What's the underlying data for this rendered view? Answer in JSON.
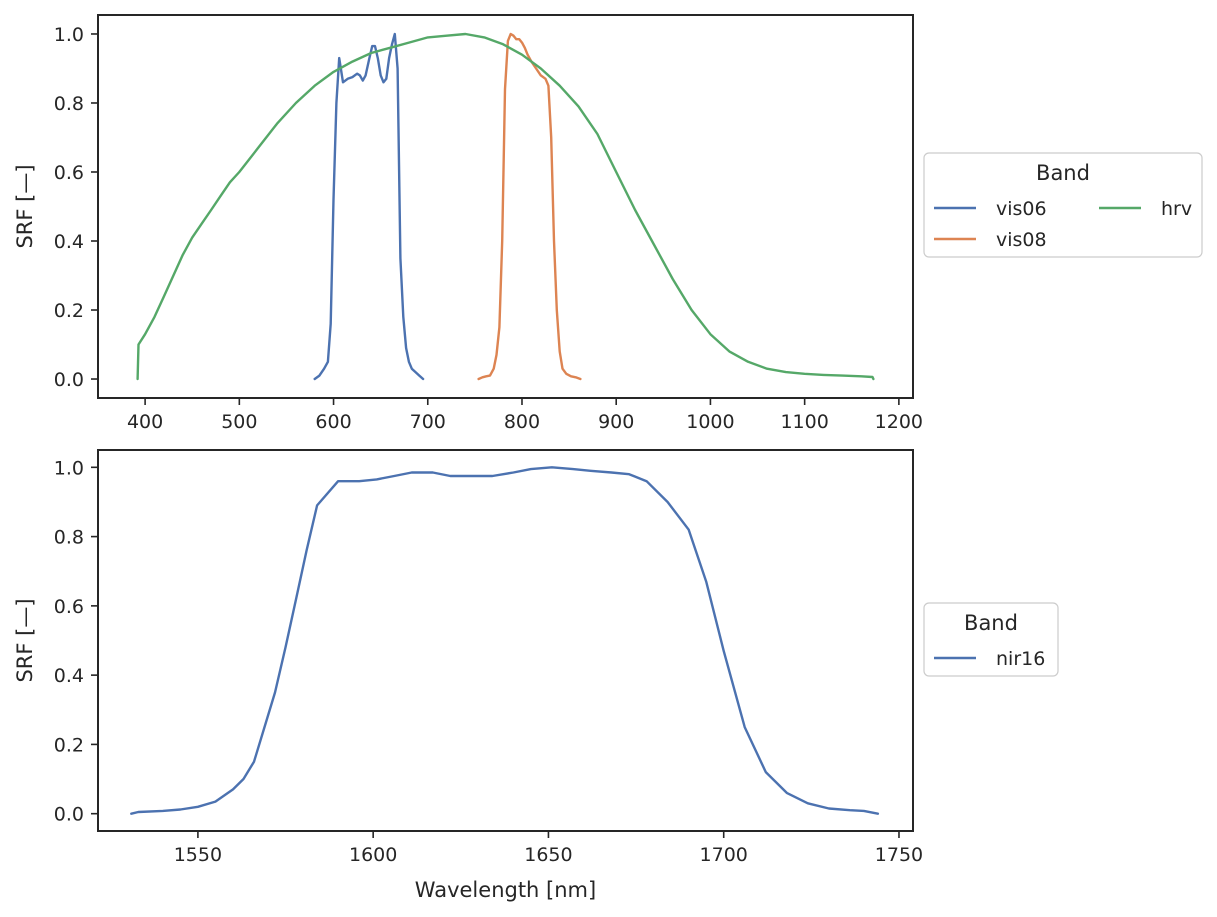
{
  "colors": {
    "blue": "#4c72b0",
    "orange": "#dd8452",
    "green": "#55a868",
    "axis": "#262626"
  },
  "chart_data": [
    {
      "type": "line",
      "title": "",
      "xlabel": "",
      "ylabel": "SRF [—]",
      "xlim": [
        350,
        1215
      ],
      "ylim": [
        -0.055,
        1.055
      ],
      "xticks": [
        400,
        500,
        600,
        700,
        800,
        900,
        1000,
        1100,
        1200
      ],
      "yticks": [
        0.0,
        0.2,
        0.4,
        0.6,
        0.8,
        1.0
      ],
      "ytick_labels": [
        "0.0",
        "0.2",
        "0.4",
        "0.6",
        "0.8",
        "1.0"
      ],
      "grid": false,
      "legend": {
        "title": "Band",
        "placement": "right-outside",
        "columns": 2,
        "entries": [
          "vis06",
          "vis08",
          "hrv"
        ]
      },
      "series": [
        {
          "name": "vis06",
          "color": "#4c72b0",
          "x": [
            580,
            585,
            590,
            594,
            597,
            600,
            603,
            606,
            610,
            615,
            620,
            625,
            628,
            631,
            634,
            638,
            641,
            644,
            647,
            650,
            653,
            656,
            659,
            662,
            665,
            668,
            671,
            674,
            677,
            680,
            683,
            687,
            691,
            695
          ],
          "y": [
            0.0,
            0.01,
            0.03,
            0.05,
            0.16,
            0.52,
            0.8,
            0.93,
            0.86,
            0.87,
            0.875,
            0.885,
            0.88,
            0.865,
            0.88,
            0.93,
            0.965,
            0.965,
            0.93,
            0.88,
            0.86,
            0.87,
            0.93,
            0.97,
            1.0,
            0.9,
            0.35,
            0.18,
            0.09,
            0.05,
            0.03,
            0.02,
            0.01,
            0.0
          ]
        },
        {
          "name": "vis08",
          "color": "#dd8452",
          "x": [
            754,
            758,
            762,
            766,
            770,
            773,
            776,
            779,
            782,
            785,
            788,
            791,
            794,
            797,
            800,
            803,
            806,
            810,
            815,
            820,
            825,
            828,
            831,
            834,
            837,
            840,
            843,
            847,
            852,
            857,
            862
          ],
          "y": [
            0.0,
            0.005,
            0.008,
            0.01,
            0.03,
            0.07,
            0.15,
            0.4,
            0.84,
            0.98,
            1.0,
            0.995,
            0.985,
            0.985,
            0.975,
            0.96,
            0.94,
            0.92,
            0.9,
            0.88,
            0.87,
            0.85,
            0.7,
            0.4,
            0.2,
            0.08,
            0.03,
            0.015,
            0.008,
            0.005,
            0.0
          ]
        },
        {
          "name": "hrv",
          "color": "#55a868",
          "x": [
            392,
            393,
            400,
            410,
            420,
            430,
            440,
            450,
            460,
            470,
            480,
            490,
            500,
            520,
            540,
            560,
            580,
            600,
            620,
            640,
            660,
            680,
            700,
            720,
            740,
            760,
            780,
            800,
            820,
            840,
            860,
            880,
            900,
            920,
            940,
            960,
            980,
            1000,
            1020,
            1040,
            1060,
            1080,
            1100,
            1120,
            1140,
            1160,
            1172,
            1173
          ],
          "y": [
            0.0,
            0.1,
            0.13,
            0.18,
            0.24,
            0.3,
            0.36,
            0.41,
            0.45,
            0.49,
            0.53,
            0.57,
            0.6,
            0.67,
            0.74,
            0.8,
            0.85,
            0.89,
            0.92,
            0.945,
            0.96,
            0.975,
            0.99,
            0.995,
            1.0,
            0.99,
            0.97,
            0.94,
            0.9,
            0.85,
            0.79,
            0.71,
            0.6,
            0.49,
            0.39,
            0.29,
            0.2,
            0.13,
            0.08,
            0.05,
            0.03,
            0.02,
            0.015,
            0.012,
            0.01,
            0.008,
            0.006,
            0.0
          ]
        }
      ]
    },
    {
      "type": "line",
      "title": "",
      "xlabel": "Wavelength [nm]",
      "ylabel": "SRF [—]",
      "xlim": [
        1521.5,
        1754
      ],
      "ylim": [
        -0.05,
        1.05
      ],
      "xticks": [
        1550,
        1600,
        1650,
        1700,
        1750
      ],
      "yticks": [
        0.0,
        0.2,
        0.4,
        0.6,
        0.8,
        1.0
      ],
      "ytick_labels": [
        "0.0",
        "0.2",
        "0.4",
        "0.6",
        "0.8",
        "1.0"
      ],
      "grid": false,
      "legend": {
        "title": "Band",
        "placement": "right-outside",
        "columns": 1,
        "entries": [
          "nir16"
        ]
      },
      "series": [
        {
          "name": "nir16",
          "color": "#4c72b0",
          "x": [
            1531,
            1533,
            1540,
            1545,
            1550,
            1555,
            1560,
            1563,
            1566,
            1569,
            1572,
            1575,
            1578,
            1581,
            1584,
            1590,
            1596,
            1601,
            1606,
            1611,
            1617,
            1622,
            1628,
            1634,
            1640,
            1645,
            1651,
            1657,
            1662,
            1668,
            1673,
            1678,
            1684,
            1690,
            1695,
            1700,
            1706,
            1712,
            1718,
            1724,
            1730,
            1736,
            1740,
            1744
          ],
          "y": [
            0.0,
            0.005,
            0.008,
            0.012,
            0.02,
            0.035,
            0.07,
            0.1,
            0.15,
            0.25,
            0.35,
            0.48,
            0.62,
            0.76,
            0.89,
            0.96,
            0.96,
            0.965,
            0.975,
            0.985,
            0.985,
            0.975,
            0.975,
            0.975,
            0.985,
            0.995,
            1.0,
            0.995,
            0.99,
            0.985,
            0.98,
            0.96,
            0.9,
            0.82,
            0.67,
            0.47,
            0.25,
            0.12,
            0.06,
            0.03,
            0.015,
            0.01,
            0.008,
            0.0
          ]
        }
      ]
    }
  ]
}
